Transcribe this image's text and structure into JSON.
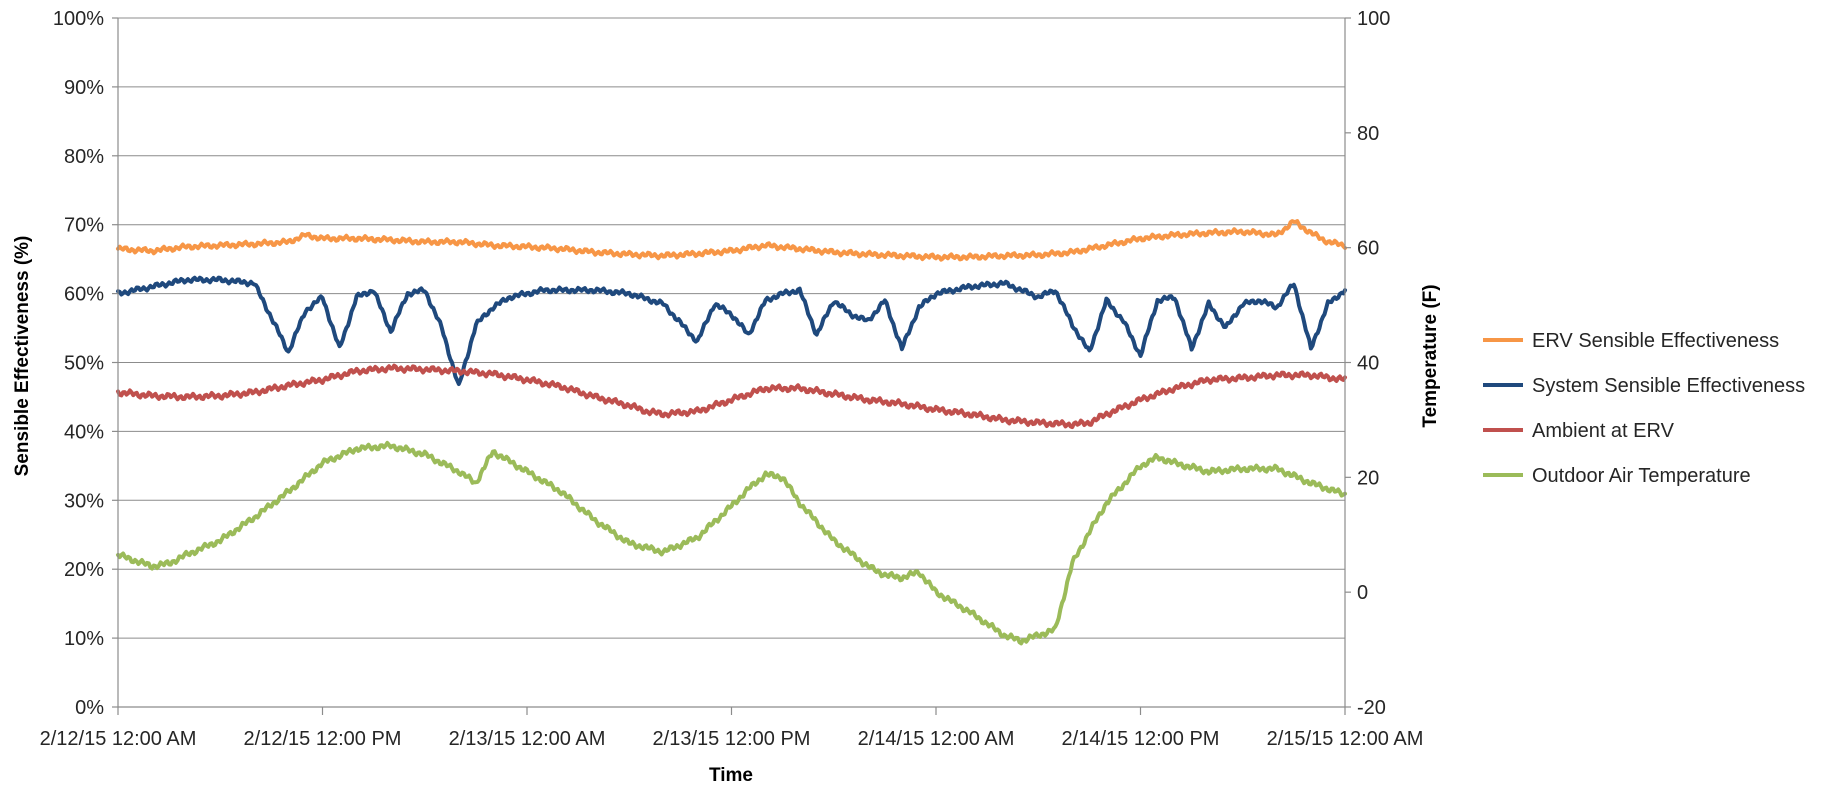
{
  "chart_data": {
    "type": "line",
    "title": "",
    "xlabel": "Time",
    "ylabel": "Sensible Effectiveness (%)",
    "y2label": "Temperature (F)",
    "x_ticks": [
      "2/12/15 12:00 AM",
      "2/12/15 12:00 PM",
      "2/13/15 12:00 AM",
      "2/13/15 12:00 PM",
      "2/14/15 12:00 AM",
      "2/14/15 12:00 PM",
      "2/15/15 12:00 AM"
    ],
    "x_tick_hours": [
      0,
      12,
      24,
      36,
      48,
      60,
      72
    ],
    "xlim_hours": [
      0,
      72
    ],
    "y_ticks": [
      "0%",
      "10%",
      "20%",
      "30%",
      "40%",
      "50%",
      "60%",
      "70%",
      "80%",
      "90%",
      "100%"
    ],
    "ylim": [
      0,
      100
    ],
    "y2_ticks": [
      "-20",
      "0",
      "20",
      "40",
      "60",
      "80",
      "100"
    ],
    "y2lim": [
      -20,
      100
    ],
    "grid": true,
    "legend_position": "right",
    "series": [
      {
        "name": "ERV Sensible Effectiveness",
        "axis": "left",
        "color": "#f79646",
        "x_hours": [
          0,
          2,
          4,
          6,
          8,
          10,
          11,
          12,
          14,
          16,
          18,
          20,
          22,
          24,
          26,
          28,
          30,
          32,
          34,
          36,
          38,
          40,
          42,
          44,
          46,
          48,
          50,
          52,
          54,
          56,
          58,
          60,
          62,
          64,
          66,
          68,
          69,
          70,
          71,
          72
        ],
        "values": [
          66.5,
          66.2,
          66.8,
          67.0,
          67.2,
          67.5,
          68.5,
          68.0,
          68.0,
          67.8,
          67.5,
          67.5,
          67.0,
          66.8,
          66.5,
          66.0,
          65.7,
          65.5,
          65.8,
          66.2,
          67.0,
          66.5,
          66.0,
          65.7,
          65.5,
          65.3,
          65.3,
          65.5,
          65.6,
          66.0,
          67.0,
          68.0,
          68.5,
          68.8,
          69.0,
          68.5,
          70.5,
          68.8,
          67.5,
          67.0
        ]
      },
      {
        "name": "System Sensible Effectiveness",
        "axis": "left",
        "color": "#1f497d",
        "x_hours": [
          0,
          2,
          4,
          6,
          8,
          9,
          10,
          11,
          12,
          13,
          14,
          15,
          16,
          17,
          18,
          19,
          20,
          21,
          22,
          23,
          24,
          25,
          26,
          28,
          30,
          32,
          34,
          35,
          36,
          37,
          38,
          39,
          40,
          41,
          42,
          43,
          44,
          45,
          46,
          47,
          48,
          50,
          52,
          54,
          55,
          56,
          57,
          58,
          59,
          60,
          61,
          62,
          63,
          64,
          65,
          66,
          67,
          68,
          69,
          70,
          71,
          72
        ],
        "values": [
          60.0,
          61.0,
          62.0,
          62.0,
          61.5,
          56.5,
          51.5,
          57.5,
          59.5,
          52.0,
          59.5,
          60.5,
          54.5,
          60.0,
          60.5,
          55.0,
          46.5,
          55.5,
          58.0,
          59.5,
          60.0,
          60.5,
          60.5,
          60.5,
          60.0,
          58.5,
          53.0,
          58.5,
          57.0,
          54.0,
          59.0,
          60.0,
          60.5,
          54.0,
          59.0,
          57.0,
          56.0,
          59.0,
          52.0,
          58.0,
          60.0,
          61.0,
          61.5,
          59.5,
          60.5,
          55.5,
          51.5,
          59.0,
          56.0,
          51.0,
          59.0,
          59.5,
          52.0,
          58.5,
          55.0,
          58.5,
          59.0,
          58.0,
          61.5,
          52.0,
          58.5,
          60.5
        ]
      },
      {
        "name": "Ambient at ERV",
        "axis": "right",
        "color": "#c0504d",
        "x_hours": [
          0,
          2,
          4,
          6,
          8,
          10,
          12,
          14,
          16,
          18,
          20,
          22,
          24,
          26,
          28,
          30,
          31,
          32,
          34,
          36,
          38,
          40,
          42,
          44,
          46,
          48,
          50,
          52,
          54,
          56,
          57,
          58,
          60,
          62,
          64,
          66,
          68,
          70,
          72
        ],
        "values": [
          34.8,
          34.2,
          34.0,
          34.2,
          34.8,
          36.0,
          37.0,
          38.5,
          39.0,
          38.8,
          38.5,
          38.0,
          37.0,
          35.8,
          34.0,
          32.5,
          31.5,
          31.0,
          31.5,
          33.5,
          35.5,
          35.5,
          34.5,
          33.5,
          32.8,
          31.8,
          31.0,
          30.0,
          29.5,
          29.2,
          29.5,
          31.0,
          33.5,
          35.5,
          37.0,
          37.3,
          37.8,
          37.8,
          37.0
        ]
      },
      {
        "name": "Outdoor Air Temperature",
        "axis": "right",
        "color": "#9bbb59",
        "x_hours": [
          0,
          1,
          2,
          3,
          4,
          6,
          8,
          10,
          12,
          14,
          16,
          18,
          20,
          21,
          22,
          24,
          26,
          28,
          30,
          32,
          34,
          36,
          37,
          38,
          39,
          40,
          42,
          44,
          45,
          46,
          47,
          48,
          50,
          52,
          53,
          54,
          55,
          56,
          57,
          58,
          60,
          61,
          62,
          64,
          66,
          68,
          70,
          72
        ],
        "values": [
          6.5,
          5.5,
          4.5,
          5.0,
          6.5,
          9.0,
          13.0,
          17.5,
          22.5,
          25.0,
          25.5,
          24.0,
          21.0,
          19.0,
          24.5,
          21.0,
          17.5,
          12.5,
          8.5,
          7.0,
          9.5,
          15.0,
          18.0,
          20.5,
          20.0,
          15.5,
          9.0,
          4.5,
          3.0,
          2.5,
          3.5,
          0.0,
          -3.5,
          -7.5,
          -8.5,
          -7.5,
          -6.5,
          5.0,
          10.5,
          15.5,
          22.0,
          23.5,
          22.5,
          21.0,
          21.5,
          21.5,
          19.0,
          17.0
        ]
      }
    ]
  }
}
